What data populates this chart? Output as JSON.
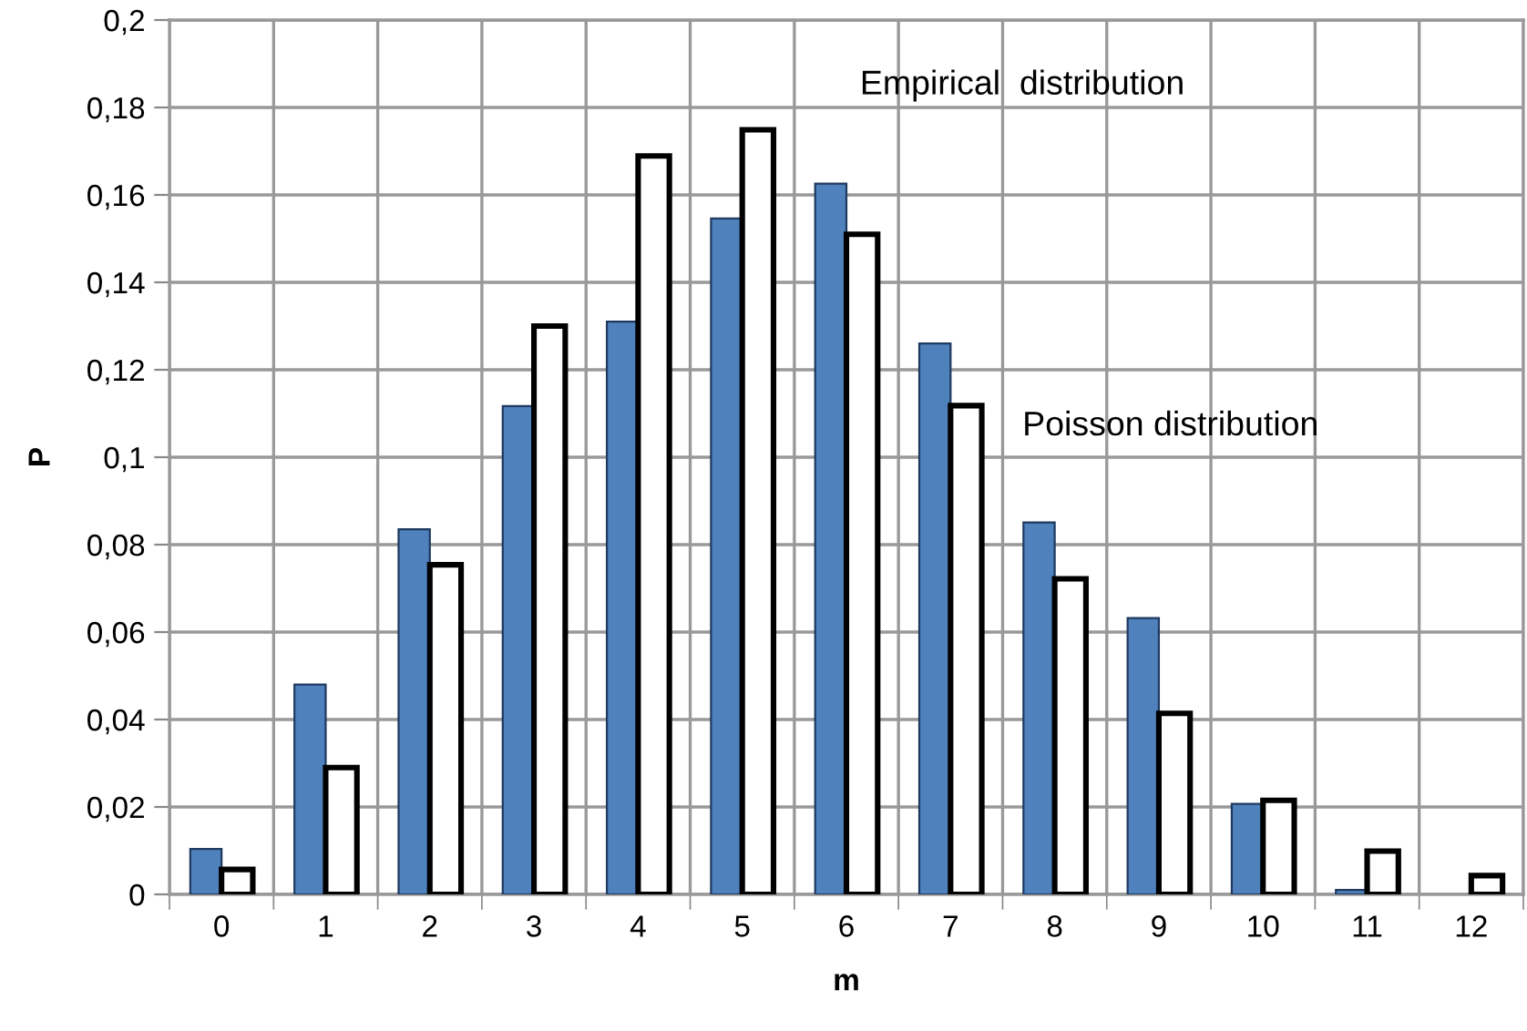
{
  "chart_data": {
    "type": "bar",
    "xlabel": "m",
    "ylabel": "P",
    "categories": [
      "0",
      "1",
      "2",
      "3",
      "4",
      "5",
      "6",
      "7",
      "8",
      "9",
      "10",
      "11",
      "12"
    ],
    "series": [
      {
        "color": "#4f81bd",
        "values": [
          0.0104,
          0.048,
          0.0835,
          0.1117,
          0.131,
          0.1546,
          0.1626,
          0.126,
          0.0851,
          0.0632,
          0.0207,
          0.001,
          null
        ]
      },
      {
        "color": "#ffffff",
        "values": [
          0.0057,
          0.029,
          0.0754,
          0.13,
          0.1689,
          0.1749,
          0.151,
          0.1118,
          0.0722,
          0.0414,
          0.0215,
          0.0099,
          0.0043
        ]
      }
    ],
    "ylim": [
      0,
      0.2
    ],
    "yticks": [
      {
        "value": 0,
        "label": "0"
      },
      {
        "value": 0.02,
        "label": "0,02"
      },
      {
        "value": 0.04,
        "label": "0,04"
      },
      {
        "value": 0.06,
        "label": "0,06"
      },
      {
        "value": 0.08,
        "label": "0,08"
      },
      {
        "value": 0.1,
        "label": "0,1"
      },
      {
        "value": 0.12,
        "label": "0,12"
      },
      {
        "value": 0.14,
        "label": "0,14"
      },
      {
        "value": 0.16,
        "label": "0,16"
      },
      {
        "value": 0.18,
        "label": "0,18"
      },
      {
        "value": 0.2,
        "label": "0,2"
      }
    ],
    "grid": true,
    "annotations": [
      "Empirical  distribution",
      "Poisson distribution"
    ]
  }
}
